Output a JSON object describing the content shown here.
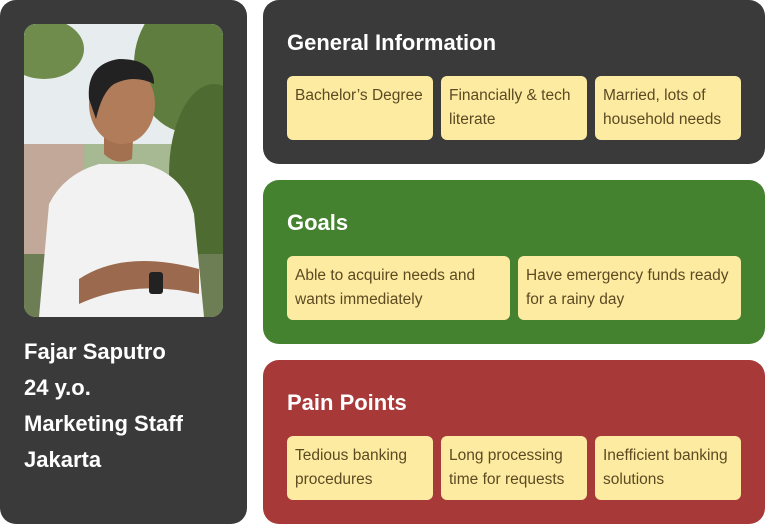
{
  "profile": {
    "photo_alt": "Portrait of Fajar Saputro",
    "name": "Fajar Saputro",
    "age": "24 y.o.",
    "occupation": "Marketing Staff",
    "location": "Jakarta"
  },
  "general_information": {
    "title": "General Information",
    "tags": [
      "Bachelor’s Degree",
      "Financially & tech literate",
      "Married, lots of household needs"
    ]
  },
  "goals": {
    "title": "Goals",
    "tags": [
      "Able to acquire needs and wants immediately",
      "Have emergency funds ready for a rainy day"
    ]
  },
  "pain_points": {
    "title": "Pain Points",
    "tags": [
      "Tedious banking procedures",
      "Long processing time for requests",
      "Inefficient banking solutions"
    ]
  },
  "colors": {
    "dark_card": "#3a3a3a",
    "goals_green": "#458230",
    "pain_red": "#a83939",
    "tag_yellow": "#fdeba1",
    "tag_text": "#5b4a22"
  }
}
